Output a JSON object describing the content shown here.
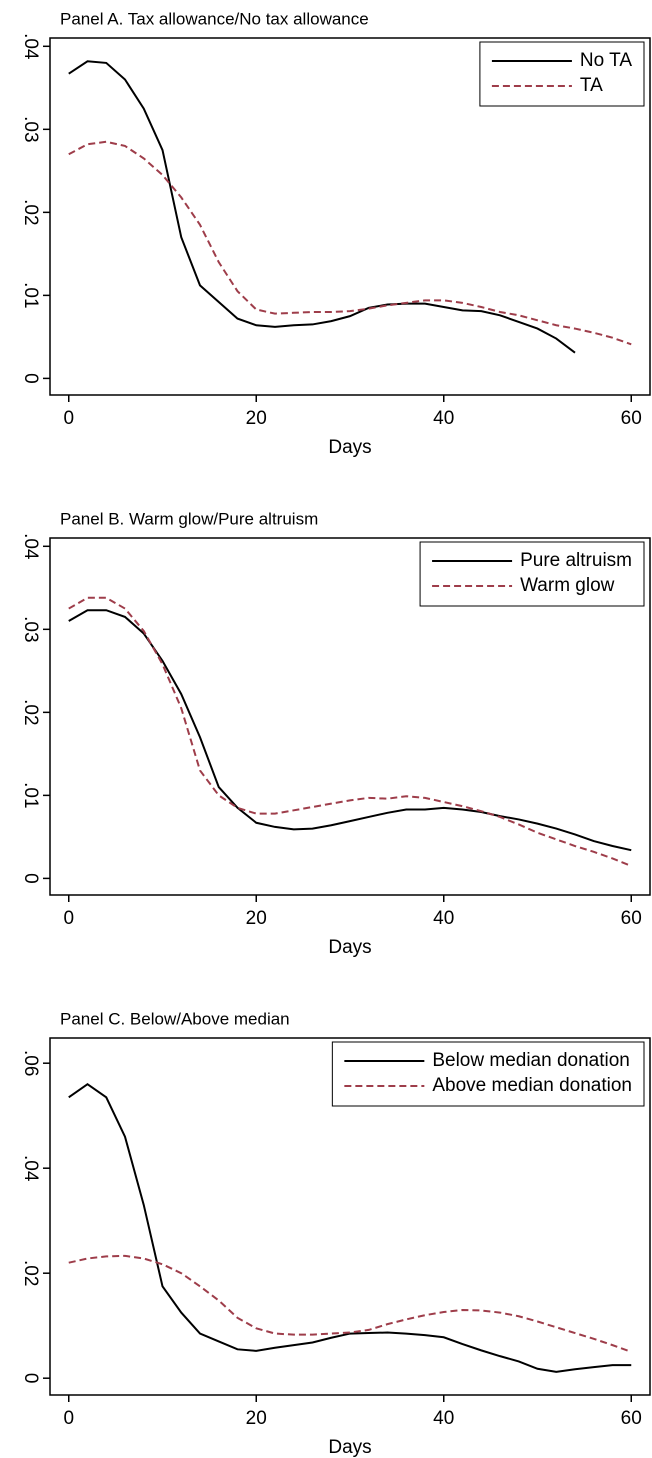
{
  "chart_data": [
    {
      "type": "line",
      "title": "Panel A. Tax allowance/No tax allowance",
      "xlabel": "Days",
      "x": [
        0,
        2,
        4,
        6,
        8,
        10,
        12,
        14,
        16,
        18,
        20,
        22,
        24,
        26,
        28,
        30,
        32,
        34,
        36,
        38,
        40,
        42,
        44,
        46,
        48,
        50,
        52,
        54,
        56,
        58,
        60
      ],
      "series": [
        {
          "name": "No TA",
          "color": "#000000",
          "style": "solid",
          "values": [
            0.0367,
            0.0382,
            0.038,
            0.036,
            0.0325,
            0.0275,
            0.017,
            0.0112,
            0.0092,
            0.0072,
            0.0064,
            0.0062,
            0.0064,
            0.0065,
            0.0069,
            0.0075,
            0.0085,
            0.0089,
            0.009,
            0.009,
            0.0086,
            0.0082,
            0.0081,
            0.0076,
            0.0068,
            0.006,
            0.0048,
            0.0031,
            null,
            null,
            null
          ]
        },
        {
          "name": "TA",
          "color": "#9e3d4a",
          "style": "dashed",
          "values": [
            0.027,
            0.0282,
            0.0285,
            0.028,
            0.0265,
            0.0245,
            0.0218,
            0.0185,
            0.014,
            0.0105,
            0.0083,
            0.0078,
            0.0079,
            0.008,
            0.008,
            0.0081,
            0.0084,
            0.0088,
            0.0091,
            0.0094,
            0.0094,
            0.0091,
            0.0086,
            0.008,
            0.0076,
            0.007,
            0.0064,
            0.006,
            0.0055,
            0.0049,
            0.0041
          ]
        }
      ],
      "xlim": [
        -2,
        62
      ],
      "xticks": [
        0,
        20,
        40,
        60
      ],
      "ylim": [
        -0.002,
        0.041
      ],
      "yticks": [
        0,
        {
          "value": 0.01,
          "label": ".01"
        },
        {
          "value": 0.02,
          "label": ".02"
        },
        {
          "value": 0.03,
          "label": ".03"
        },
        {
          "value": 0.04,
          "label": ".04"
        }
      ],
      "grid": false,
      "legend": "upper right"
    },
    {
      "type": "line",
      "title": "Panel B. Warm glow/Pure altruism",
      "xlabel": "Days",
      "x": [
        0,
        2,
        4,
        6,
        8,
        10,
        12,
        14,
        16,
        18,
        20,
        22,
        24,
        26,
        28,
        30,
        32,
        34,
        36,
        38,
        40,
        42,
        44,
        46,
        48,
        50,
        52,
        54,
        56,
        58,
        60
      ],
      "series": [
        {
          "name": "Pure altruism",
          "color": "#000000",
          "style": "solid",
          "values": [
            0.031,
            0.0323,
            0.0323,
            0.0315,
            0.0295,
            0.0262,
            0.0222,
            0.017,
            0.011,
            0.0085,
            0.0067,
            0.0062,
            0.0059,
            0.006,
            0.0064,
            0.0069,
            0.0074,
            0.0079,
            0.0083,
            0.0083,
            0.0085,
            0.0083,
            0.008,
            0.0075,
            0.0071,
            0.0066,
            0.006,
            0.0053,
            0.0045,
            0.0039,
            0.0034
          ]
        },
        {
          "name": "Warm glow",
          "color": "#9e3d4a",
          "style": "dashed",
          "values": [
            0.0325,
            0.0338,
            0.0338,
            0.0325,
            0.0298,
            0.0258,
            0.0205,
            0.013,
            0.01,
            0.0085,
            0.0078,
            0.0078,
            0.0082,
            0.0086,
            0.009,
            0.0094,
            0.0097,
            0.0096,
            0.0099,
            0.0097,
            0.0092,
            0.0087,
            0.0081,
            0.0074,
            0.0065,
            0.0055,
            0.0047,
            0.0039,
            0.0032,
            0.0024,
            0.0015
          ]
        }
      ],
      "xlim": [
        -2,
        62
      ],
      "xticks": [
        0,
        20,
        40,
        60
      ],
      "ylim": [
        -0.002,
        0.041
      ],
      "yticks": [
        0,
        {
          "value": 0.01,
          "label": ".01"
        },
        {
          "value": 0.02,
          "label": ".02"
        },
        {
          "value": 0.03,
          "label": ".03"
        },
        {
          "value": 0.04,
          "label": ".04"
        }
      ],
      "grid": false,
      "legend": "upper right"
    },
    {
      "type": "line",
      "title": "Panel C. Below/Above median",
      "xlabel": "Days",
      "x": [
        0,
        2,
        4,
        6,
        8,
        10,
        12,
        14,
        16,
        18,
        20,
        22,
        24,
        26,
        28,
        30,
        32,
        34,
        36,
        38,
        40,
        42,
        44,
        46,
        48,
        50,
        52,
        54,
        56,
        58,
        60
      ],
      "series": [
        {
          "name": "Below median donation",
          "color": "#000000",
          "style": "solid",
          "values": [
            0.0535,
            0.056,
            0.0535,
            0.046,
            0.033,
            0.0175,
            0.0125,
            0.0085,
            0.007,
            0.0055,
            0.0052,
            0.0058,
            0.0063,
            0.0068,
            0.0077,
            0.0085,
            0.0086,
            0.0087,
            0.0085,
            0.0082,
            0.0078,
            0.0065,
            0.0053,
            0.0042,
            0.0032,
            0.0018,
            0.0012,
            0.0017,
            0.0021,
            0.0025,
            0.0025
          ]
        },
        {
          "name": "Above median donation",
          "color": "#9e3d4a",
          "style": "dashed",
          "values": [
            0.022,
            0.0228,
            0.0232,
            0.0233,
            0.0228,
            0.0217,
            0.02,
            0.0175,
            0.0148,
            0.0115,
            0.0095,
            0.0085,
            0.0083,
            0.0083,
            0.0085,
            0.0087,
            0.0092,
            0.0103,
            0.0112,
            0.012,
            0.0126,
            0.013,
            0.0129,
            0.0125,
            0.0118,
            0.0108,
            0.0097,
            0.0086,
            0.0075,
            0.0063,
            0.005
          ]
        }
      ],
      "xlim": [
        -2,
        62
      ],
      "xticks": [
        0,
        20,
        40,
        60
      ],
      "ylim": [
        -0.0032,
        0.0648
      ],
      "yticks": [
        0,
        {
          "value": 0.02,
          "label": ".02"
        },
        {
          "value": 0.04,
          "label": ".04"
        },
        {
          "value": 0.06,
          "label": ".06"
        }
      ],
      "grid": false,
      "legend": "upper right"
    }
  ]
}
